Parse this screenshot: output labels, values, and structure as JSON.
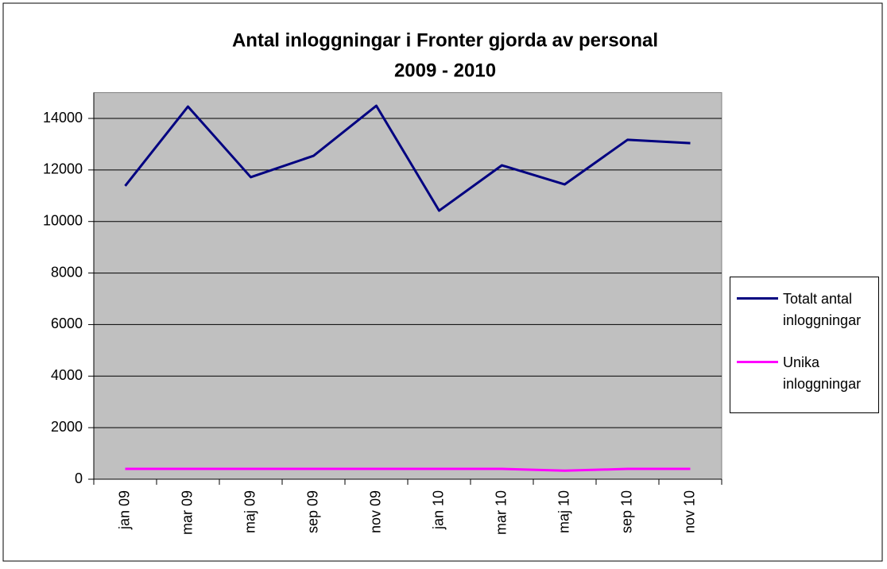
{
  "chart_data": {
    "type": "line",
    "title": [
      "Antal inloggningar i Fronter gjorda av personal",
      "2009 - 2010"
    ],
    "categories": [
      "jan 09",
      "mar 09",
      "maj 09",
      "sep 09",
      "nov 09",
      "jan 10",
      "mar 10",
      "maj 10",
      "sep 10",
      "nov 10"
    ],
    "series": [
      {
        "name": "Totalt antal inloggningar",
        "color": "#000080",
        "values": [
          11380,
          14460,
          11720,
          12550,
          14490,
          10420,
          12180,
          11440,
          13170,
          13040
        ]
      },
      {
        "name": "Unika inloggningar",
        "color": "#ff00ff",
        "values": [
          400,
          400,
          400,
          400,
          400,
          400,
          400,
          330,
          400,
          400
        ]
      }
    ],
    "ylim": [
      0,
      15000
    ],
    "yticks": [
      0,
      2000,
      4000,
      6000,
      8000,
      10000,
      12000,
      14000
    ],
    "grid": true,
    "legend": "right",
    "plot_background": "#c0c0c0"
  }
}
